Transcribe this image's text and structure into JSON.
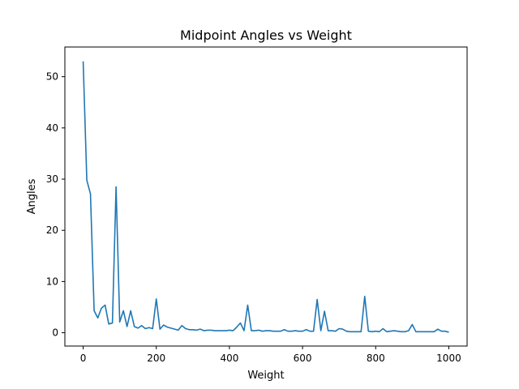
{
  "chart_data": {
    "type": "line",
    "title": "Midpoint Angles vs Weight",
    "xlabel": "Weight",
    "ylabel": "Angles",
    "xlim": [
      -50,
      1050
    ],
    "ylim": [
      -2.6,
      55.8
    ],
    "xticks": [
      0,
      200,
      400,
      600,
      800,
      1000
    ],
    "yticks": [
      0,
      10,
      20,
      30,
      40,
      50
    ],
    "grid": false,
    "legend": "none",
    "series": [
      {
        "color": "#1f77b4",
        "x": [
          0,
          10,
          20,
          30,
          40,
          50,
          60,
          70,
          80,
          90,
          100,
          110,
          120,
          130,
          140,
          150,
          160,
          170,
          180,
          190,
          200,
          210,
          220,
          230,
          240,
          250,
          260,
          270,
          280,
          290,
          300,
          310,
          320,
          330,
          340,
          350,
          360,
          370,
          380,
          390,
          400,
          410,
          420,
          430,
          440,
          450,
          460,
          470,
          480,
          490,
          500,
          510,
          520,
          530,
          540,
          550,
          560,
          570,
          580,
          590,
          600,
          610,
          620,
          630,
          640,
          650,
          660,
          670,
          680,
          690,
          700,
          710,
          720,
          730,
          740,
          750,
          760,
          770,
          780,
          790,
          800,
          810,
          820,
          830,
          840,
          850,
          860,
          870,
          880,
          890,
          900,
          910,
          920,
          930,
          940,
          950,
          960,
          970,
          980,
          990,
          1000
        ],
        "values": [
          53.0,
          29.8,
          27.1,
          4.3,
          2.9,
          4.8,
          5.4,
          1.7,
          1.9,
          28.5,
          2.1,
          4.3,
          1.2,
          4.3,
          1.2,
          0.9,
          1.4,
          0.8,
          1.0,
          0.8,
          6.6,
          0.7,
          1.5,
          1.1,
          0.9,
          0.7,
          0.5,
          1.4,
          0.8,
          0.6,
          0.6,
          0.5,
          0.7,
          0.4,
          0.5,
          0.5,
          0.4,
          0.4,
          0.4,
          0.4,
          0.5,
          0.4,
          1.1,
          1.9,
          0.4,
          5.4,
          0.4,
          0.4,
          0.5,
          0.3,
          0.4,
          0.4,
          0.3,
          0.3,
          0.3,
          0.6,
          0.3,
          0.3,
          0.4,
          0.3,
          0.3,
          0.6,
          0.3,
          0.3,
          6.5,
          0.4,
          4.2,
          0.4,
          0.4,
          0.3,
          0.8,
          0.7,
          0.3,
          0.2,
          0.2,
          0.2,
          0.2,
          7.1,
          0.3,
          0.2,
          0.3,
          0.2,
          0.8,
          0.2,
          0.3,
          0.4,
          0.3,
          0.2,
          0.2,
          0.4,
          1.6,
          0.2,
          0.2,
          0.2,
          0.2,
          0.2,
          0.2,
          0.7,
          0.3,
          0.3,
          0.1
        ]
      }
    ]
  }
}
